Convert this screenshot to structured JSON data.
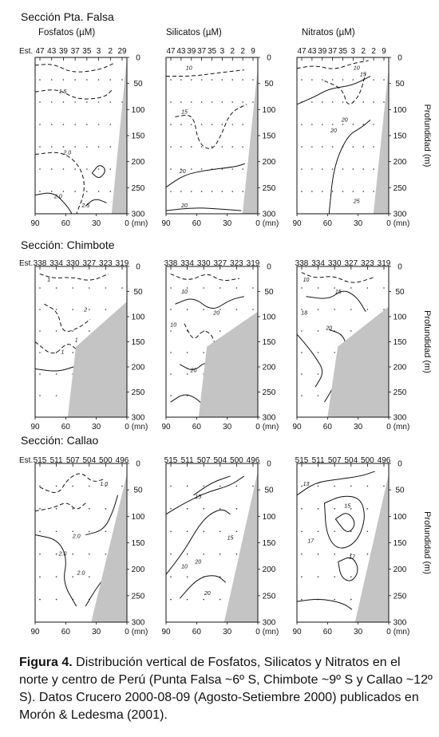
{
  "chart_data": {
    "type": "contour",
    "x_axis": {
      "label": "(mn)",
      "ticks": [
        "90",
        "60",
        "30",
        "0"
      ],
      "range": [
        90,
        0
      ]
    },
    "y_axis": {
      "label": "Profundidad (m)",
      "ticks": [
        "0",
        "50",
        "100",
        "150",
        "200",
        "250",
        "300"
      ],
      "range": [
        0,
        300
      ]
    },
    "variables": [
      "Fosfatos (µM)",
      "Silicatos (µM)",
      "Nitratos (µM)"
    ],
    "sections": [
      {
        "title": "Sección Pta. Falsa",
        "stations_label": "Est.",
        "station_labels": [
          [
            "47",
            "43",
            "39",
            "37",
            "35",
            "3",
            "2",
            "29"
          ],
          [
            "47",
            "43",
            "39",
            "37",
            "35",
            "3",
            "2",
            "2",
            "9"
          ],
          [
            "47",
            "43",
            "39",
            "37",
            "35",
            "3",
            "2",
            "2",
            "9"
          ]
        ],
        "contour_labels": [
          [
            "1.5",
            "2.0",
            "2.0",
            "2.5"
          ],
          [
            "10",
            "15",
            "20",
            "20"
          ],
          [
            "10",
            "15",
            "20",
            "20",
            "25"
          ]
        ]
      },
      {
        "title": "Sección: Chimbote",
        "stations_label": "Est.",
        "station_labels": [
          [
            "338",
            "334",
            "330",
            "327",
            "323",
            "319"
          ],
          [
            "338",
            "334",
            "330",
            "327",
            "323",
            "319"
          ],
          [
            "338",
            "334",
            "330",
            "327",
            "323",
            "319"
          ]
        ],
        "contour_labels": [
          [
            "1",
            "2",
            "1",
            "1"
          ],
          [
            "10",
            "10",
            "20",
            "20"
          ],
          [
            "10",
            "15",
            "18",
            "20"
          ]
        ]
      },
      {
        "title": "Sección: Callao",
        "stations_label": "Est.",
        "station_labels": [
          [
            "515",
            "511",
            "507",
            "504",
            "500",
            "496"
          ],
          [
            "515",
            "511",
            "507",
            "504",
            "500",
            "496"
          ],
          [
            "515",
            "511",
            "507",
            "504",
            "500",
            "496"
          ]
        ],
        "contour_labels": [
          [
            "1.0",
            "2.0",
            "2.0",
            "2.0"
          ],
          [
            "15",
            "20",
            "10",
            "15",
            "20"
          ],
          [
            "13",
            "15",
            "17",
            "17"
          ]
        ]
      }
    ]
  },
  "caption": {
    "bold": "Figura 4.",
    "text": " Distribución vertical de Fosfatos, Silicatos y Nitratos en el norte y centro de Perú (Punta Falsa ~6º S, Chimbote ~9º S y Callao ~12º S). Datos Crucero 2000-08-09 (Agosto-Setiembre 2000) publicados en Morón & Ledesma (2001)."
  }
}
